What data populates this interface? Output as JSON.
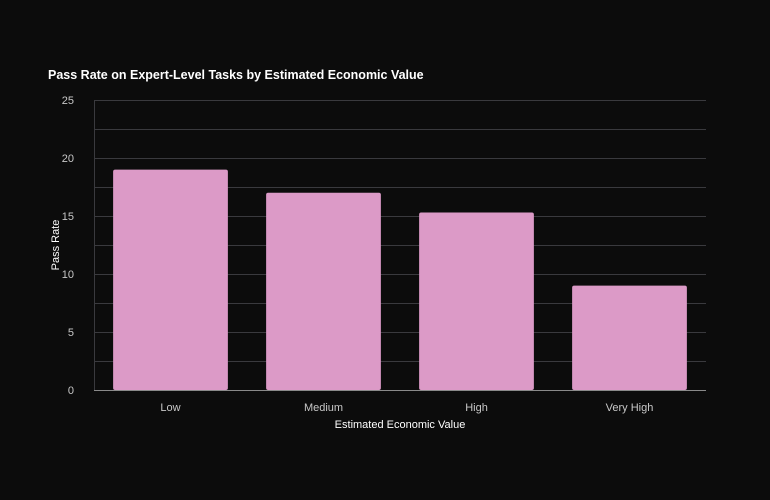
{
  "chart_data": {
    "type": "bar",
    "title": "Pass Rate on Expert-Level Tasks by Estimated Economic Value",
    "xlabel": "Estimated Economic Value",
    "ylabel": "Pass Rate",
    "categories": [
      "Low",
      "Medium",
      "High",
      "Very High"
    ],
    "values": [
      19,
      17,
      15.3,
      9
    ],
    "ylim": [
      0,
      25
    ],
    "yticks": [
      0,
      5,
      10,
      15,
      20,
      25
    ],
    "minor_gridlines": true,
    "grid": true,
    "bar_color": "#dc9ac7",
    "background_color": "#0c0c0c",
    "grid_color": "#3a3a3e",
    "text_color": "#ffffff"
  }
}
